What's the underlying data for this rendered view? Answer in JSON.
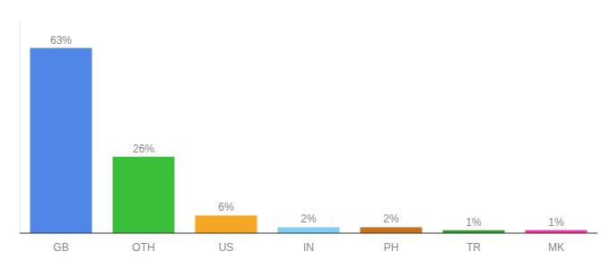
{
  "chart_data": {
    "type": "bar",
    "categories": [
      "GB",
      "OTH",
      "US",
      "IN",
      "PH",
      "TR",
      "MK"
    ],
    "values": [
      63,
      26,
      6,
      2,
      2,
      1,
      1
    ],
    "value_labels": [
      "63%",
      "26%",
      "6%",
      "2%",
      "2%",
      "1%",
      "1%"
    ],
    "colors": [
      "#4f86e8",
      "#3abf3a",
      "#f5a623",
      "#7ecef4",
      "#c8711a",
      "#2e9e2e",
      "#ff2d9e"
    ],
    "ylim": [
      0,
      72
    ],
    "data_labels": true,
    "tick_labels": "x"
  }
}
